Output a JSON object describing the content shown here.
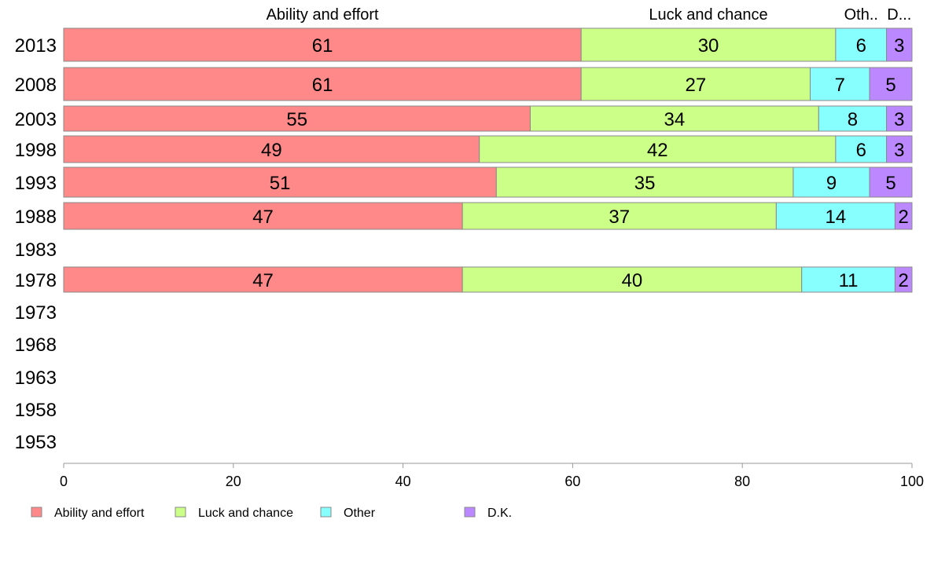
{
  "chart_data": {
    "type": "bar",
    "orientation": "horizontal",
    "stacked": true,
    "categories": [
      "2013",
      "2008",
      "2003",
      "1998",
      "1993",
      "1988",
      "1983",
      "1978",
      "1973",
      "1968",
      "1963",
      "1958",
      "1953"
    ],
    "series": [
      {
        "name": "Ability and effort",
        "color": "#FF8888",
        "values": [
          61,
          61,
          55,
          49,
          51,
          47,
          null,
          47,
          null,
          null,
          null,
          null,
          null
        ]
      },
      {
        "name": "Luck and chance",
        "color": "#CCFF88",
        "values": [
          30,
          27,
          34,
          42,
          35,
          37,
          null,
          40,
          null,
          null,
          null,
          null,
          null
        ]
      },
      {
        "name": "Other",
        "color": "#88FFFF",
        "values": [
          6,
          7,
          8,
          6,
          9,
          14,
          null,
          11,
          null,
          null,
          null,
          null,
          null
        ]
      },
      {
        "name": "D.K.",
        "color": "#BB88FF",
        "values": [
          3,
          5,
          3,
          3,
          5,
          2,
          null,
          2,
          null,
          null,
          null,
          null,
          null
        ]
      }
    ],
    "top_labels": [
      "Ability and effort",
      "Luck and chance",
      "Oth..",
      "D..."
    ],
    "xlim": [
      0,
      100
    ],
    "xticks": [
      0,
      20,
      40,
      60,
      80,
      100
    ],
    "grid": false,
    "legend": {
      "position": "bottom-left",
      "entries": [
        "Ability and effort",
        "Luck and chance",
        "Other",
        "D.K."
      ]
    }
  }
}
